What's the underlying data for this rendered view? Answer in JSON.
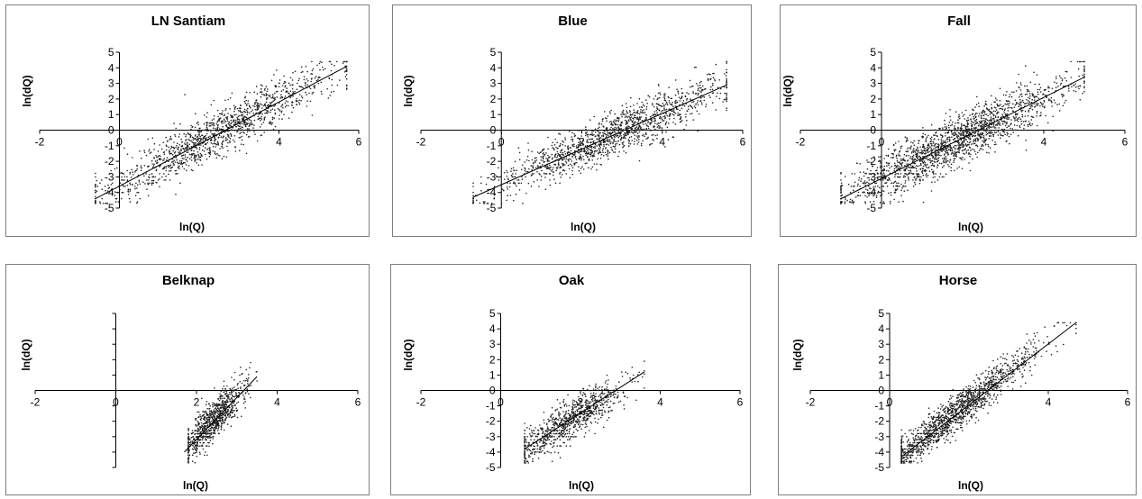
{
  "chart_data": [
    {
      "type": "scatter",
      "title": "LN Santiam",
      "xlabel": "ln(Q)",
      "ylabel": "ln(dQ)",
      "xlim": [
        -2,
        6
      ],
      "ylim": [
        -5,
        5
      ],
      "xticks": [
        -2,
        0,
        2,
        4,
        6
      ],
      "yticks": [
        -5,
        -4,
        -3,
        -2,
        -1,
        0,
        1,
        2,
        3,
        4,
        5
      ],
      "trendline": {
        "x": [
          -0.6,
          5.7
        ],
        "y": [
          -4.4,
          4.1
        ]
      },
      "point_cloud": {
        "center_x": 2.5,
        "slope": 1.35,
        "intercept": -3.5,
        "x_min": -0.6,
        "x_max": 5.7,
        "spread": 0.75,
        "count": 1300
      }
    },
    {
      "type": "scatter",
      "title": "Blue",
      "xlabel": "ln(Q)",
      "ylabel": "ln(dQ)",
      "xlim": [
        -2,
        6
      ],
      "ylim": [
        -5,
        5
      ],
      "xticks": [
        -2,
        0,
        2,
        4,
        6
      ],
      "yticks": [
        -5,
        -4,
        -3,
        -2,
        -1,
        0,
        1,
        2,
        3,
        4,
        5
      ],
      "trendline": {
        "x": [
          -0.7,
          5.6
        ],
        "y": [
          -4.3,
          2.9
        ]
      },
      "point_cloud": {
        "center_x": 2.7,
        "slope": 1.15,
        "intercept": -3.5,
        "x_min": -0.7,
        "x_max": 5.6,
        "spread": 0.7,
        "count": 1400
      }
    },
    {
      "type": "scatter",
      "title": "Fall",
      "xlabel": "ln(Q)",
      "ylabel": "ln(dQ)",
      "xlim": [
        -2,
        6
      ],
      "ylim": [
        -5,
        5
      ],
      "xticks": [
        -2,
        0,
        2,
        4,
        6
      ],
      "yticks": [
        -5,
        -4,
        -3,
        -2,
        -1,
        0,
        1,
        2,
        3,
        4,
        5
      ],
      "trendline": {
        "x": [
          -1.0,
          5.0
        ],
        "y": [
          -4.4,
          3.4
        ]
      },
      "point_cloud": {
        "center_x": 1.8,
        "slope": 1.3,
        "intercept": -3.1,
        "x_min": -1.0,
        "x_max": 5.0,
        "spread": 0.8,
        "count": 1800
      }
    },
    {
      "type": "scatter",
      "title": "Belknap",
      "xlabel": "ln(Q)",
      "ylabel": "ln(dQ)",
      "xlim": [
        -2,
        6
      ],
      "ylim": [
        -5,
        5
      ],
      "xticks": [
        -2,
        0,
        2,
        4,
        6
      ],
      "yticks": [],
      "trendline": {
        "x": [
          1.7,
          3.5
        ],
        "y": [
          -4.0,
          0.9
        ]
      },
      "point_cloud": {
        "center_x": 2.4,
        "slope": 2.7,
        "intercept": -8.5,
        "x_min": 1.8,
        "x_max": 3.5,
        "spread": 0.6,
        "count": 900
      }
    },
    {
      "type": "scatter",
      "title": "Oak",
      "xlabel": "ln(Q)",
      "ylabel": "ln(dQ)",
      "xlim": [
        -2,
        6
      ],
      "ylim": [
        -5,
        5
      ],
      "xticks": [
        -2,
        0,
        2,
        4,
        6
      ],
      "yticks": [
        -5,
        -4,
        -3,
        -2,
        -1,
        0,
        1,
        2,
        3,
        4,
        5
      ],
      "trendline": {
        "x": [
          0.6,
          3.6
        ],
        "y": [
          -3.8,
          1.2
        ]
      },
      "point_cloud": {
        "center_x": 1.7,
        "slope": 1.65,
        "intercept": -4.8,
        "x_min": 0.6,
        "x_max": 3.6,
        "spread": 0.65,
        "count": 900
      }
    },
    {
      "type": "scatter",
      "title": "Horse",
      "xlabel": "ln(Q)",
      "ylabel": "ln(dQ)",
      "xlim": [
        -2,
        6
      ],
      "ylim": [
        -5,
        5
      ],
      "xticks": [
        -2,
        0,
        2,
        4,
        6
      ],
      "yticks": [
        -5,
        -4,
        -3,
        -2,
        -1,
        0,
        1,
        2,
        3,
        4,
        5
      ],
      "trendline": {
        "x": [
          0.3,
          4.7
        ],
        "y": [
          -4.3,
          4.4
        ]
      },
      "point_cloud": {
        "center_x": 1.6,
        "slope": 2.0,
        "intercept": -4.8,
        "x_min": 0.3,
        "x_max": 4.7,
        "spread": 0.6,
        "count": 1500
      }
    }
  ]
}
